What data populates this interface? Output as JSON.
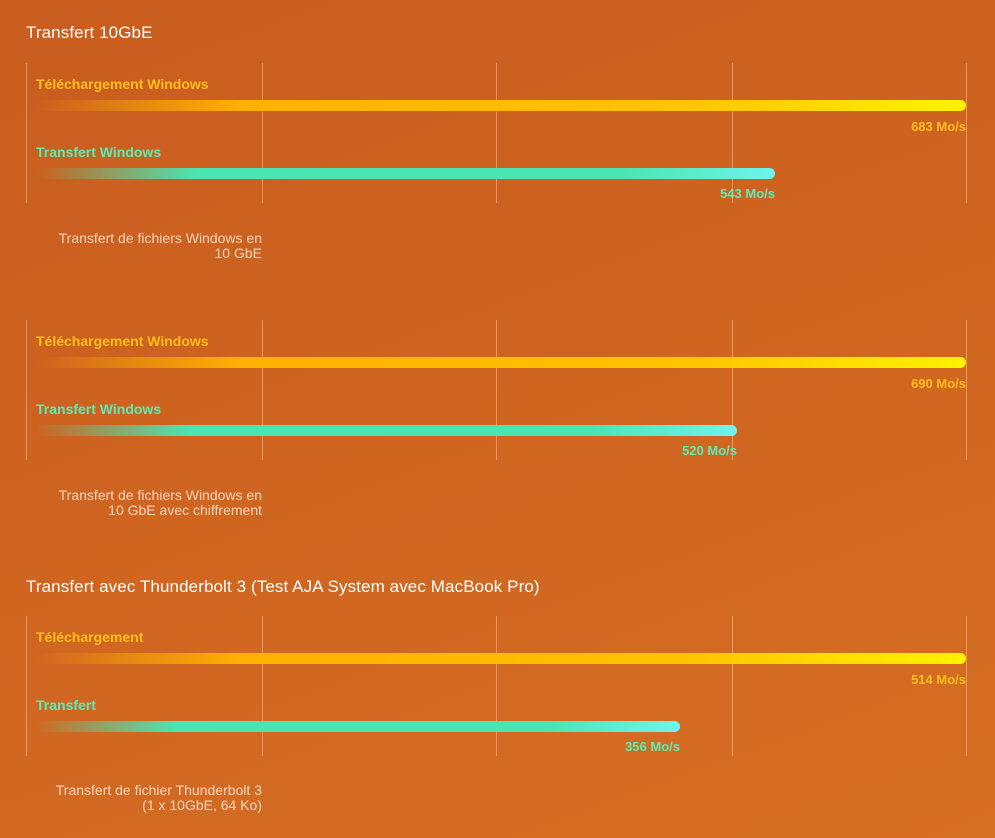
{
  "titles": {
    "section1": "Transfert 10GbE",
    "section2": "Transfert avec Thunderbolt 3 (Test AJA System avec MacBook Pro)"
  },
  "colors": {
    "download": "#ffbe1e",
    "transfer": "#56efb8",
    "background": "#cf6420"
  },
  "chart_data": [
    {
      "type": "bar",
      "orientation": "horizontal",
      "grid": true,
      "categories": [
        "Téléchargement Windows",
        "Transfert Windows"
      ],
      "values": [
        683,
        543
      ],
      "value_labels": [
        "683 Mo/s",
        "543 Mo/s"
      ],
      "unit": "Mo/s",
      "xlim": [
        0,
        683
      ],
      "caption": [
        "Transfert de fichiers Windows en",
        "10 GbE"
      ]
    },
    {
      "type": "bar",
      "orientation": "horizontal",
      "grid": true,
      "categories": [
        "Téléchargement Windows",
        "Transfert Windows"
      ],
      "values": [
        690,
        520
      ],
      "value_labels": [
        "690 Mo/s",
        "520 Mo/s"
      ],
      "unit": "Mo/s",
      "xlim": [
        0,
        690
      ],
      "caption": [
        "Transfert de fichiers Windows en",
        "10 GbE avec chiffrement"
      ]
    },
    {
      "type": "bar",
      "orientation": "horizontal",
      "grid": true,
      "categories": [
        "Téléchargement",
        "Transfert"
      ],
      "values": [
        514,
        356
      ],
      "value_labels": [
        "514 Mo/s",
        "356 Mo/s"
      ],
      "unit": "Mo/s",
      "xlim": [
        0,
        514
      ],
      "caption": [
        "Transfert de fichier Thunderbolt 3",
        "(1 x 10GbE, 64 Ko)"
      ]
    }
  ]
}
